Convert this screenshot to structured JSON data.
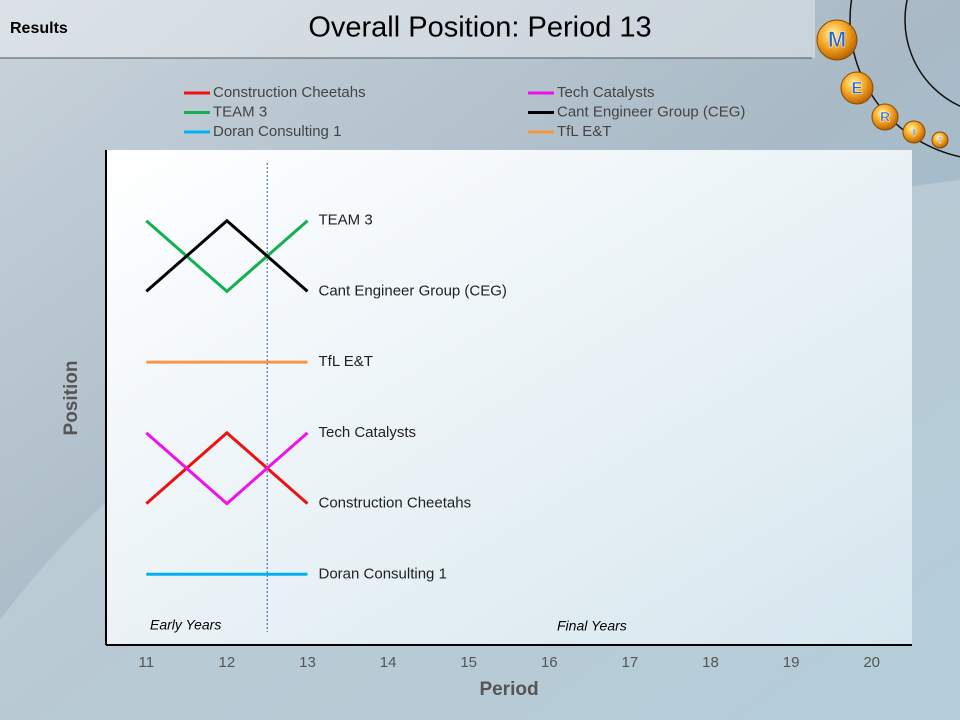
{
  "header": "Results",
  "logo": [
    "M",
    "E",
    "R",
    "I",
    "T"
  ],
  "chart_data": {
    "type": "line",
    "title": "Overall Position: Period 13",
    "x_label": "Period",
    "y_label": "Position",
    "x": [
      11,
      12,
      13
    ],
    "xlim": [
      10.5,
      20.5
    ],
    "xticks": [
      11,
      12,
      13,
      14,
      15,
      16,
      17,
      18,
      19,
      20
    ],
    "ylim": [
      7,
      0
    ],
    "phase_divider": 12.5,
    "annotations": [
      "Early Years",
      "Final Years"
    ],
    "series": [
      {
        "name": "Construction Cheetahs",
        "color": "#ee1111",
        "values": [
          5,
          4,
          5
        ]
      },
      {
        "name": "TEAM 3",
        "color": "#11b050",
        "values": [
          1,
          2,
          1
        ]
      },
      {
        "name": "Doran Consulting 1",
        "color": "#00b0f0",
        "values": [
          6,
          6,
          6
        ]
      },
      {
        "name": "Tech Catalysts",
        "color": "#ee11ee",
        "values": [
          4,
          5,
          4
        ]
      },
      {
        "name": "Cant Engineer Group (CEG)",
        "color": "#000000",
        "values": [
          2,
          1,
          2
        ]
      },
      {
        "name": "TfL E&T",
        "color": "#f79646",
        "values": [
          3,
          3,
          3
        ]
      }
    ]
  }
}
